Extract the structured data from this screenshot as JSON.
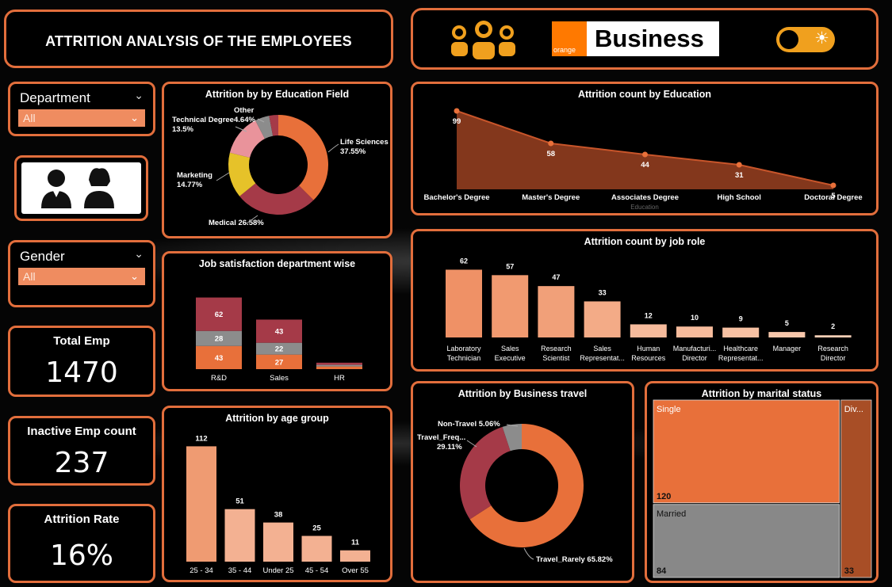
{
  "header": {
    "title": "ATTRITION ANALYSIS OF THE EMPLOYEES",
    "brand_small": "orange",
    "brand_big": "Business"
  },
  "slicers": {
    "department": {
      "label": "Department",
      "value": "All"
    },
    "gender": {
      "label": "Gender",
      "value": "All"
    }
  },
  "kpis": {
    "total_emp": {
      "label": "Total Emp",
      "value": "1470"
    },
    "inactive": {
      "label": "Inactive Emp count",
      "value": "237"
    },
    "attrition_rate": {
      "label": "Attrition Rate",
      "value": "16%"
    }
  },
  "icons": {
    "team": "team-people-icon",
    "gender": "male-female-icon",
    "theme": "theme-toggle-icon"
  },
  "colors": {
    "accent": "#e26e3c",
    "orange": "#e8703a",
    "salmon": "#ef9b72",
    "maroon": "#a53a48",
    "grey": "#8c8c8c",
    "yellow": "#e6c229",
    "pink": "#e9939b"
  },
  "chart_data": [
    {
      "id": "education_field",
      "type": "pie",
      "title": "Attrition by by Education Field",
      "slices": [
        {
          "label": "Life Sciences",
          "value": 37.55,
          "text": "37.55%"
        },
        {
          "label": "Medical",
          "value": 26.58,
          "text": "26.58%"
        },
        {
          "label": "Marketing",
          "value": 14.77,
          "text": "14.77%"
        },
        {
          "label": "Technical Degree",
          "value": 13.5,
          "text": "13.5%"
        },
        {
          "label": "Other",
          "value": 4.64,
          "text": "4.64%"
        },
        {
          "label": "",
          "value": 2.96,
          "text": ""
        }
      ]
    },
    {
      "id": "education",
      "type": "area",
      "title": "Attrition count by Education",
      "categories": [
        "Bachelor's Degree",
        "Master's Degree",
        "Associates Degree",
        "High School",
        "Doctoral Degree"
      ],
      "values": [
        99,
        58,
        44,
        31,
        5
      ],
      "xlabel": "Education"
    },
    {
      "id": "job_satisfaction",
      "type": "bar",
      "stacked": true,
      "title": "Job satisfaction department wise",
      "categories": [
        "R&D",
        "Sales",
        "HR"
      ],
      "series": [
        {
          "values": [
            43,
            27,
            5
          ]
        },
        {
          "values": [
            28,
            22,
            3
          ]
        },
        {
          "values": [
            62,
            43,
            4
          ]
        }
      ]
    },
    {
      "id": "job_role",
      "type": "bar",
      "title": "Attrition count by job role",
      "categories": [
        "Laboratory Technician",
        "Sales Executive",
        "Research Scientist",
        "Sales Representat...",
        "Human Resources",
        "Manufacturi... Director",
        "Healthcare Representat...",
        "Manager",
        "Research Director"
      ],
      "values": [
        62,
        57,
        47,
        33,
        12,
        10,
        9,
        5,
        2
      ]
    },
    {
      "id": "age_group",
      "type": "bar",
      "title": "Attrition by age group",
      "categories": [
        "25 - 34",
        "35 - 44",
        "Under 25",
        "45 - 54",
        "Over 55"
      ],
      "values": [
        112,
        51,
        38,
        25,
        11
      ]
    },
    {
      "id": "business_travel",
      "type": "pie",
      "title": "Attrition by Business travel",
      "slices": [
        {
          "label": "Travel_Rarely",
          "value": 65.82,
          "text": "65.82%"
        },
        {
          "label": "Travel_Freq...",
          "value": 29.11,
          "text": "29.11%"
        },
        {
          "label": "Non-Travel",
          "value": 5.06,
          "text": "5.06%"
        }
      ]
    },
    {
      "id": "marital_status",
      "type": "heatmap",
      "title": "Attrition by marital status",
      "items": [
        {
          "label": "Single",
          "value": 120
        },
        {
          "label": "Married",
          "value": 84
        },
        {
          "label": "Div...",
          "value": 33
        }
      ]
    }
  ]
}
